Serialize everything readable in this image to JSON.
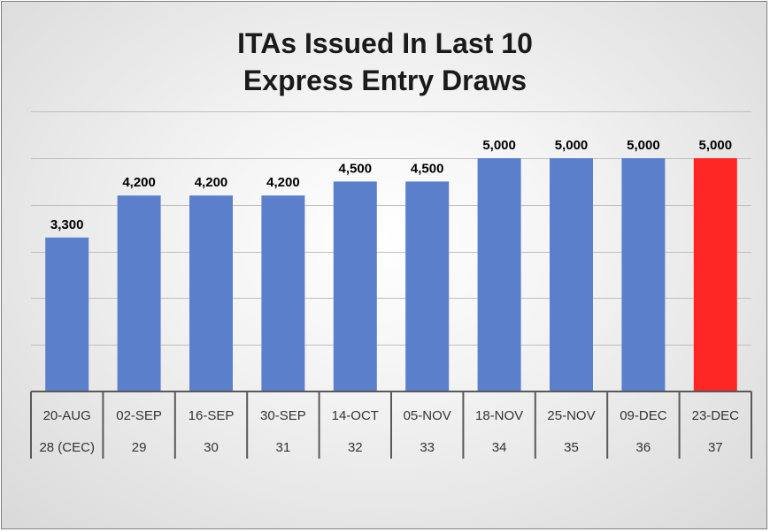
{
  "chart_data": {
    "type": "bar",
    "title_lines": [
      "ITAs Issued In Last 10",
      "Express Entry Draws"
    ],
    "categories": [
      "20-AUG",
      "02-SEP",
      "16-SEP",
      "30-SEP",
      "14-OCT",
      "05-NOV",
      "18-NOV",
      "25-NOV",
      "09-DEC",
      "23-DEC"
    ],
    "subcategories": [
      "28 (CEC)",
      "29",
      "30",
      "31",
      "32",
      "33",
      "34",
      "35",
      "36",
      "37"
    ],
    "values": [
      3300,
      4200,
      4200,
      4200,
      4500,
      4500,
      5000,
      5000,
      5000,
      5000
    ],
    "data_labels": [
      "3,300",
      "4,200",
      "4,200",
      "4,200",
      "4,500",
      "4,500",
      "5,000",
      "5,000",
      "5,000",
      "5,000"
    ],
    "ylim": [
      0,
      6000
    ],
    "grid": true,
    "bar_colors": [
      "#5b7fcb",
      "#5b7fcb",
      "#5b7fcb",
      "#5b7fcb",
      "#5b7fcb",
      "#5b7fcb",
      "#5b7fcb",
      "#5b7fcb",
      "#5b7fcb",
      "#ff2626"
    ],
    "gridline_color": "#bfbfbf"
  }
}
